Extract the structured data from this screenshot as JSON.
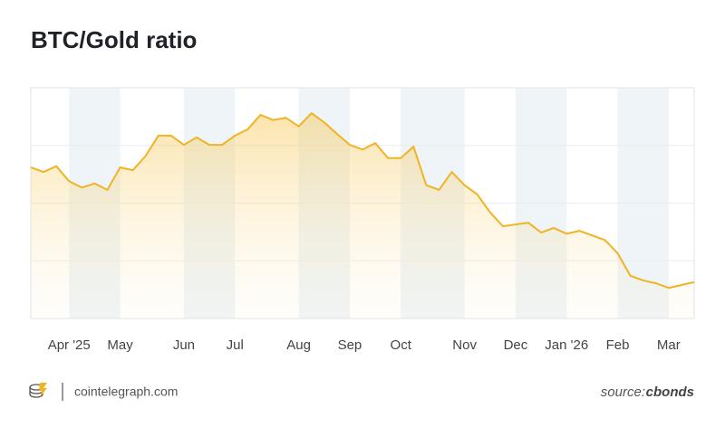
{
  "chart_data": {
    "type": "area",
    "title": "BTC/Gold ratio",
    "categories": [
      null,
      null,
      null,
      "Apr '25",
      null,
      null,
      null,
      "May",
      null,
      null,
      null,
      null,
      "Jun",
      null,
      null,
      null,
      "Jul",
      null,
      null,
      null,
      null,
      "Aug",
      null,
      null,
      null,
      "Sep",
      null,
      null,
      null,
      "Oct",
      null,
      null,
      null,
      null,
      "Nov",
      null,
      null,
      null,
      "Dec",
      null,
      null,
      null,
      "Jan '26",
      null,
      null,
      null,
      "Feb",
      null,
      null,
      null,
      "Mar",
      null,
      null
    ],
    "values": [
      2.62,
      2.54,
      2.64,
      2.38,
      2.27,
      2.34,
      2.23,
      2.62,
      2.57,
      2.82,
      3.17,
      3.17,
      3.01,
      3.14,
      3.01,
      3.01,
      3.17,
      3.28,
      3.53,
      3.44,
      3.48,
      3.33,
      3.56,
      3.4,
      3.2,
      3.01,
      2.93,
      3.04,
      2.78,
      2.78,
      2.98,
      2.31,
      2.23,
      2.54,
      2.31,
      2.15,
      1.84,
      1.6,
      1.63,
      1.66,
      1.49,
      1.57,
      1.47,
      1.52,
      1.44,
      1.36,
      1.13,
      0.74,
      0.66,
      0.61,
      0.53,
      0.58,
      0.63
    ],
    "color": "#f0b323",
    "ylim": [
      0,
      4
    ],
    "yticks": [
      1,
      2,
      3
    ],
    "grid": true
  },
  "brand": "cointelegraph.com",
  "source": {
    "prefix": "source:",
    "name": "cbonds"
  }
}
